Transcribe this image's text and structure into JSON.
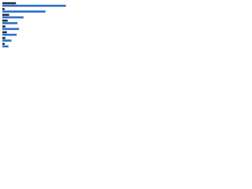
{
  "chart_data": {
    "type": "barh",
    "categories": [
      null,
      null,
      null,
      null,
      null,
      null,
      null,
      null
    ],
    "series": [
      {
        "color": "#1b2d4f",
        "values": [
          18,
          3,
          9,
          7,
          4,
          6,
          4,
          3
        ]
      },
      {
        "color": "#2f6fc6",
        "values": [
          84,
          57,
          28,
          20,
          22,
          19,
          12,
          8
        ]
      }
    ],
    "xlim": [
      0,
      100
    ]
  }
}
